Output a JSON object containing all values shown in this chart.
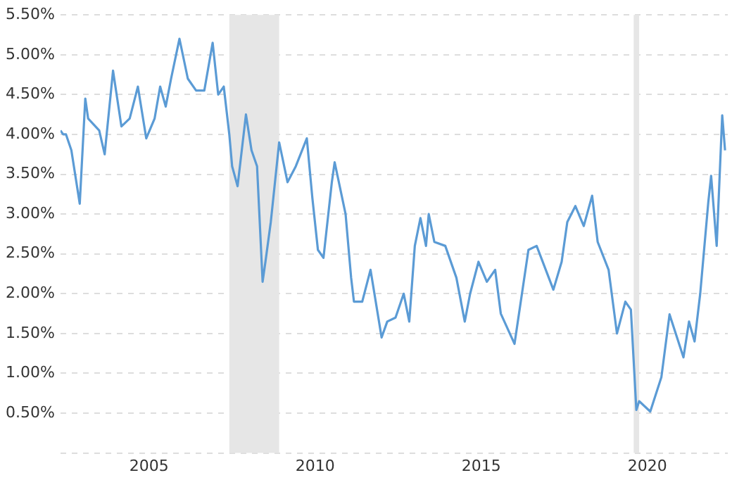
{
  "chart_data": {
    "type": "line",
    "x": [
      "2002-11",
      "2002-12",
      "2003-01",
      "2003-03",
      "2003-06",
      "2003-08",
      "2003-09",
      "2004-01",
      "2004-03",
      "2004-06",
      "2004-09",
      "2004-12",
      "2005-03",
      "2005-06",
      "2005-09",
      "2005-11",
      "2006-01",
      "2006-03",
      "2006-06",
      "2006-09",
      "2006-12",
      "2007-03",
      "2007-06",
      "2007-08",
      "2007-10",
      "2007-12",
      "2008-01",
      "2008-03",
      "2008-06",
      "2008-08",
      "2008-10",
      "2008-12",
      "2009-01",
      "2009-03",
      "2009-06",
      "2009-09",
      "2009-12",
      "2010-04",
      "2010-06",
      "2010-08",
      "2010-10",
      "2011-01",
      "2011-02",
      "2011-06",
      "2011-08",
      "2011-09",
      "2011-12",
      "2012-03",
      "2012-07",
      "2012-09",
      "2012-12",
      "2013-03",
      "2013-05",
      "2013-07",
      "2013-09",
      "2013-11",
      "2013-12",
      "2014-02",
      "2014-06",
      "2014-10",
      "2015-01",
      "2015-03",
      "2015-06",
      "2015-09",
      "2015-12",
      "2016-02",
      "2016-07",
      "2016-12",
      "2017-03",
      "2017-09",
      "2017-12",
      "2018-02",
      "2018-05",
      "2018-08",
      "2018-11",
      "2019-01",
      "2019-05",
      "2019-08",
      "2019-11",
      "2020-01",
      "2020-03",
      "2020-04",
      "2020-08",
      "2020-12",
      "2021-03",
      "2021-08",
      "2021-10",
      "2021-12",
      "2022-02",
      "2022-05",
      "2022-06",
      "2022-08",
      "2022-10",
      "2022-11"
    ],
    "series": [
      {
        "color": "#5b9bd5",
        "values": [
          4.05,
          4.0,
          4.0,
          3.8,
          3.13,
          4.45,
          4.2,
          4.05,
          3.75,
          4.8,
          4.1,
          4.2,
          4.6,
          3.95,
          4.2,
          4.6,
          4.35,
          4.7,
          5.2,
          4.7,
          4.55,
          4.55,
          5.15,
          4.5,
          4.6,
          4.0,
          3.6,
          3.35,
          4.25,
          3.8,
          3.6,
          2.15,
          2.4,
          2.9,
          3.9,
          3.4,
          3.6,
          3.95,
          3.2,
          2.55,
          2.45,
          3.4,
          3.65,
          3.0,
          2.2,
          1.9,
          1.9,
          2.3,
          1.45,
          1.65,
          1.7,
          2.0,
          1.65,
          2.6,
          2.95,
          2.6,
          3.0,
          2.65,
          2.6,
          2.2,
          1.65,
          2.0,
          2.4,
          2.15,
          2.3,
          1.75,
          1.37,
          2.55,
          2.6,
          2.05,
          2.4,
          2.9,
          3.1,
          2.85,
          3.23,
          2.65,
          2.3,
          1.5,
          1.9,
          1.8,
          0.54,
          0.65,
          0.52,
          0.95,
          1.74,
          1.2,
          1.65,
          1.4,
          2.0,
          3.15,
          3.48,
          2.6,
          4.24,
          3.8
        ]
      }
    ],
    "xlim": [
      "2002-11",
      "2022-12"
    ],
    "xticks": [
      {
        "value": "2005-07",
        "label": "2005"
      },
      {
        "value": "2010-07",
        "label": "2010"
      },
      {
        "value": "2015-07",
        "label": "2015"
      },
      {
        "value": "2020-07",
        "label": "2020"
      }
    ],
    "ylim": [
      0,
      5.5
    ],
    "yticks": [
      {
        "value": 0,
        "label": null
      },
      {
        "value": 0.5,
        "label": "0.50%"
      },
      {
        "value": 1,
        "label": "1.00%"
      },
      {
        "value": 1.5,
        "label": "1.50%"
      },
      {
        "value": 2,
        "label": "2.00%"
      },
      {
        "value": 2.5,
        "label": "2.50%"
      },
      {
        "value": 3,
        "label": "3.00%"
      },
      {
        "value": 3.5,
        "label": "3.50%"
      },
      {
        "value": 4,
        "label": "4.00%"
      },
      {
        "value": 4.5,
        "label": "4.50%"
      },
      {
        "value": 5,
        "label": "5.00%"
      },
      {
        "value": 5.5,
        "label": "5.50%"
      }
    ],
    "bands": [
      {
        "axis": "x",
        "from": "2007-12",
        "to": "2009-06",
        "color": "#e6e6e6"
      },
      {
        "axis": "x",
        "from": "2020-02",
        "to": "2020-04",
        "color": "#e6e6e6"
      }
    ],
    "grid": "y",
    "line_style": "solid",
    "marker": "none",
    "legend": false
  }
}
